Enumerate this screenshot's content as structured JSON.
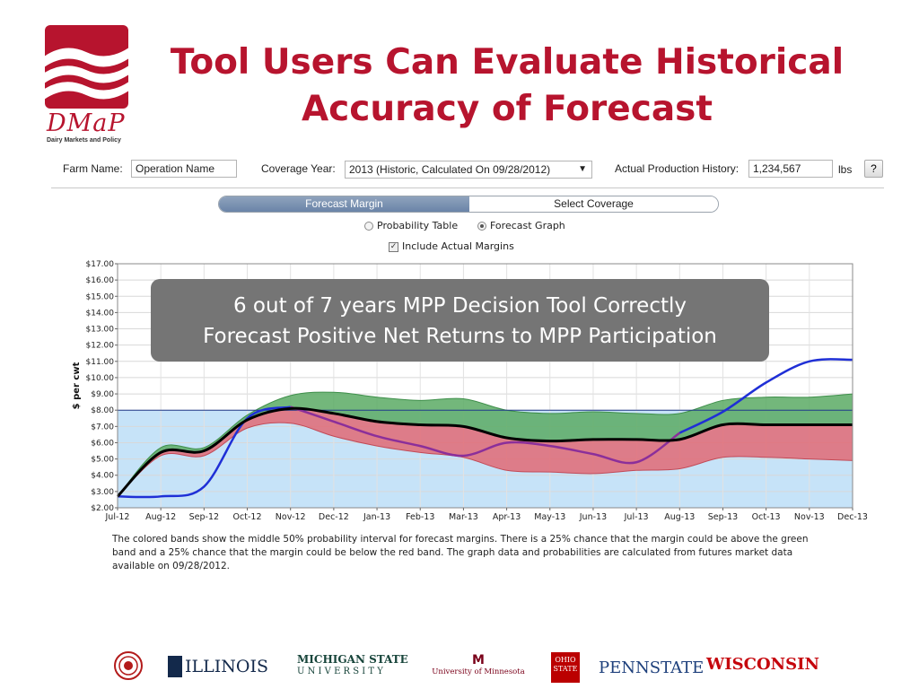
{
  "logo": {
    "name": "DMaP",
    "subtitle": "Dairy Markets and Policy"
  },
  "title": {
    "line1": "Tool Users Can Evaluate Historical",
    "line2": "Accuracy of Forecast"
  },
  "form": {
    "farm_name_label": "Farm Name:",
    "farm_name_value": "Operation Name",
    "coverage_year_label": "Coverage Year:",
    "coverage_year_value": "2013 (Historic, Calculated On 09/28/2012)",
    "production_label": "Actual Production History:",
    "production_value": "1,234,567",
    "production_unit": "lbs",
    "help_label": "?"
  },
  "tabs": [
    {
      "label": "Forecast Margin",
      "active": true
    },
    {
      "label": "Select Coverage",
      "active": false
    }
  ],
  "view_options": [
    {
      "label": "Probability Table",
      "selected": false
    },
    {
      "label": "Forecast Graph",
      "selected": true
    }
  ],
  "include_actual": {
    "label": "Include Actual Margins",
    "checked": true
  },
  "callout": {
    "line1": "6 out of 7 years MPP Decision Tool Correctly",
    "line2": "Forecast Positive Net Returns to MPP Participation"
  },
  "note": "The colored bands show the middle 50% probability interval for forecast margins. There is a 25% chance that the margin could be above the green band and a 25% chance that the margin could be below the red band. The graph data and probabilities are calculated from futures market data available on 09/28/2012.",
  "footer_logos": [
    {
      "name": "seal",
      "text": ""
    },
    {
      "name": "illinois",
      "text": "ILLINOIS"
    },
    {
      "name": "michigan-state",
      "text": "MICHIGAN STATE",
      "sub": "U N I V E R S I T Y"
    },
    {
      "name": "minnesota",
      "text": "University of Minnesota"
    },
    {
      "name": "ohio-state",
      "text": "OHIO STATE"
    },
    {
      "name": "penn-state",
      "text": "PENNSTATE"
    },
    {
      "name": "wisconsin",
      "text": "WISCONSIN"
    }
  ],
  "chart_data": {
    "type": "line",
    "ylabel": "$ per cwt",
    "ylim": [
      2,
      17
    ],
    "yticks": [
      "$2.00",
      "$3.00",
      "$4.00",
      "$5.00",
      "$6.00",
      "$7.00",
      "$8.00",
      "$9.00",
      "$10.00",
      "$11.00",
      "$12.00",
      "$13.00",
      "$14.00",
      "$15.00",
      "$16.00",
      "$17.00"
    ],
    "categories": [
      "Jul-12",
      "Aug-12",
      "Sep-12",
      "Oct-12",
      "Nov-12",
      "Dec-12",
      "Jan-13",
      "Feb-13",
      "Mar-13",
      "Apr-13",
      "May-13",
      "Jun-13",
      "Jul-13",
      "Aug-13",
      "Sep-13",
      "Oct-13",
      "Nov-13",
      "Dec-13"
    ],
    "threshold": 8.0,
    "colors": {
      "upper_band": "#5aaa64",
      "lower_band": "#e06a75",
      "forecast": "#000000",
      "actual": "#1f2fd6",
      "historic": "#8b2f9a",
      "background": "#c6e3f8",
      "threshold": "#1e3a8a"
    },
    "series": [
      {
        "name": "",
        "role": "band_upper",
        "values": [
          2.7,
          5.7,
          5.7,
          7.7,
          8.9,
          9.1,
          8.8,
          8.6,
          8.7,
          8.0,
          7.8,
          7.9,
          7.8,
          7.8,
          8.6,
          8.8,
          8.8,
          9.0
        ]
      },
      {
        "name": "",
        "role": "forecast_median",
        "values": [
          2.7,
          5.4,
          5.5,
          7.4,
          8.1,
          7.8,
          7.3,
          7.1,
          7.0,
          6.3,
          6.1,
          6.2,
          6.2,
          6.2,
          7.1,
          7.1,
          7.1,
          7.1
        ]
      },
      {
        "name": "",
        "role": "band_lower",
        "values": [
          2.7,
          5.2,
          5.2,
          6.9,
          7.2,
          6.4,
          5.8,
          5.4,
          5.1,
          4.3,
          4.2,
          4.1,
          4.3,
          4.4,
          5.1,
          5.1,
          5.0,
          4.9
        ]
      },
      {
        "name": "",
        "role": "actual_margin",
        "values": [
          2.7,
          2.7,
          3.3,
          7.5,
          8.2,
          null,
          null,
          null,
          null,
          null,
          null,
          null,
          null,
          6.6,
          7.9,
          9.7,
          11.0,
          11.1
        ]
      },
      {
        "name": "",
        "role": "actual_margin_2",
        "values": [
          null,
          null,
          null,
          null,
          8.2,
          7.3,
          6.4,
          5.8,
          5.2,
          6.0,
          5.8,
          5.3,
          4.8,
          6.6,
          null,
          null,
          null,
          null
        ]
      }
    ]
  }
}
